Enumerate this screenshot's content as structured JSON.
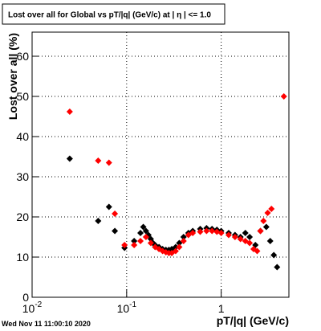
{
  "chart_data": {
    "type": "scatter",
    "title": "Lost over all for Global vs pT/|q| (GeV/c) at |  η | <= 1.0",
    "y_label": "Lost over all (%)",
    "x_label": "pT/|q| (GeV/c)",
    "footer": "Wed Nov 11 11:00:10 2020",
    "xlog": true,
    "xlim": [
      0.01,
      5.2
    ],
    "ylim": [
      0,
      66
    ],
    "xticks": [
      {
        "value": 0.01,
        "label": "10",
        "exponent": "-2"
      },
      {
        "value": 0.1,
        "label": "10",
        "exponent": "-1"
      },
      1
    ],
    "yticks": [
      0,
      10,
      20,
      30,
      40,
      50,
      60
    ],
    "grid": true,
    "series": [
      {
        "color": "#000000",
        "x": [
          0.025,
          0.05,
          0.065,
          0.075,
          0.095,
          0.12,
          0.14,
          0.15,
          0.16,
          0.17,
          0.18,
          0.19,
          0.2,
          0.22,
          0.24,
          0.26,
          0.28,
          0.3,
          0.33,
          0.36,
          0.4,
          0.45,
          0.5,
          0.6,
          0.7,
          0.8,
          0.9,
          1.0,
          1.2,
          1.4,
          1.6,
          1.8,
          2.0,
          2.3,
          2.6,
          3.0,
          3.3,
          3.6,
          3.9
        ],
        "values": [
          34.5,
          19,
          22.5,
          16.5,
          12.3,
          14,
          16,
          17.5,
          16.5,
          15.5,
          14.5,
          13.5,
          13,
          12.5,
          12,
          11.8,
          11.8,
          12,
          12.5,
          13.5,
          15,
          16,
          16.5,
          17,
          17.2,
          17,
          16.8,
          16.5,
          16,
          15.5,
          15,
          16,
          15,
          13,
          16.5,
          17.5,
          14,
          10.5,
          7.5
        ]
      },
      {
        "color": "#ff0000",
        "x": [
          0.025,
          0.05,
          0.065,
          0.075,
          0.095,
          0.12,
          0.14,
          0.16,
          0.18,
          0.2,
          0.22,
          0.24,
          0.26,
          0.28,
          0.3,
          0.33,
          0.36,
          0.4,
          0.45,
          0.5,
          0.6,
          0.7,
          0.8,
          0.9,
          1.0,
          1.2,
          1.4,
          1.6,
          1.8,
          2.0,
          2.2,
          2.4,
          2.6,
          2.8,
          3.1,
          3.4,
          4.6
        ],
        "values": [
          46.2,
          34,
          33.5,
          20.8,
          13,
          13,
          14,
          15,
          13.5,
          12.5,
          12,
          11.5,
          11.2,
          11,
          11,
          11.5,
          12.5,
          14,
          15.5,
          16,
          16.3,
          16.5,
          16.5,
          16.3,
          16,
          15.5,
          15,
          14.5,
          14,
          13.5,
          12,
          11.5,
          16.5,
          19,
          21,
          22,
          50
        ]
      }
    ]
  }
}
